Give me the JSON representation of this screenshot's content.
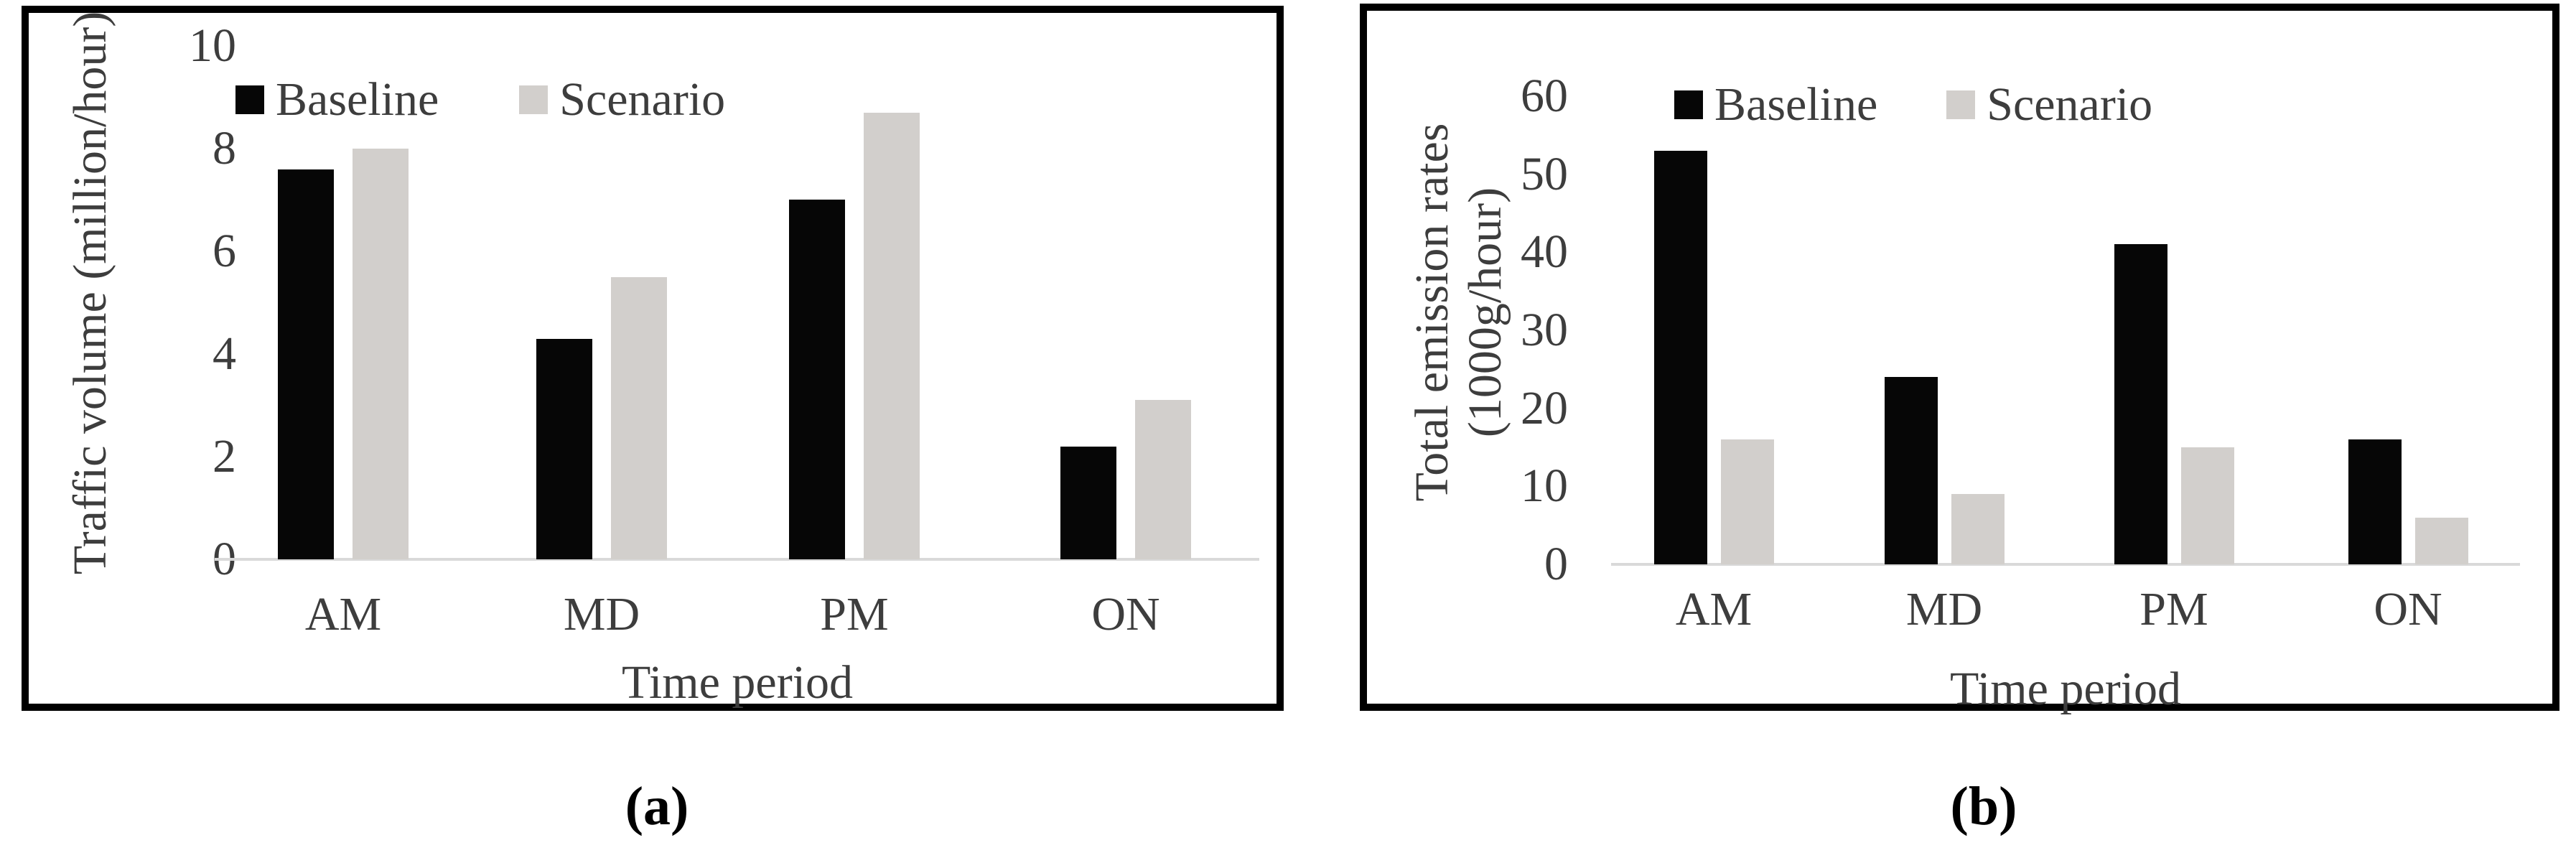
{
  "figure": {
    "panel_count": 2
  },
  "colors": {
    "bar_baseline": "#060606",
    "bar_scenario": "#d2cfcc",
    "axis_line": "#d9d9d9",
    "text": "#3d3d3d",
    "panel_border": "#000000",
    "caption_text": "#000000",
    "background": "#ffffff"
  },
  "chart_data": [
    {
      "panel": "a",
      "type": "bar",
      "caption": "(a)",
      "title": "",
      "xlabel": "Time period",
      "ylabel": "Traffic volume (million/hour)",
      "ylabel_lines": [
        "Traffic volume (million/hour)"
      ],
      "categories": [
        "AM",
        "MD",
        "PM",
        "ON"
      ],
      "series": [
        {
          "name": "Baseline",
          "color": "#060606",
          "values": [
            7.6,
            4.3,
            7.0,
            2.2
          ]
        },
        {
          "name": "Scenario",
          "color": "#d2cfcc",
          "values": [
            8.0,
            5.5,
            8.7,
            3.1
          ]
        }
      ],
      "ylim": [
        0,
        10
      ],
      "yticks": [
        0,
        2,
        4,
        6,
        8,
        10
      ],
      "legend_position": "top-center",
      "grid": false
    },
    {
      "panel": "b",
      "type": "bar",
      "caption": "(b)",
      "title": "",
      "xlabel": "Time period",
      "ylabel": "Total emission rates (1000g/hour)",
      "ylabel_lines": [
        "Total emission rates",
        "(1000g/hour)"
      ],
      "categories": [
        "AM",
        "MD",
        "PM",
        "ON"
      ],
      "series": [
        {
          "name": "Baseline",
          "color": "#060606",
          "values": [
            53,
            24,
            41,
            16
          ]
        },
        {
          "name": "Scenario",
          "color": "#d2cfcc",
          "values": [
            16,
            9,
            15,
            6
          ]
        }
      ],
      "ylim": [
        0,
        60
      ],
      "yticks": [
        0,
        10,
        20,
        30,
        40,
        50,
        60
      ],
      "legend_position": "top-center",
      "grid": false
    }
  ]
}
